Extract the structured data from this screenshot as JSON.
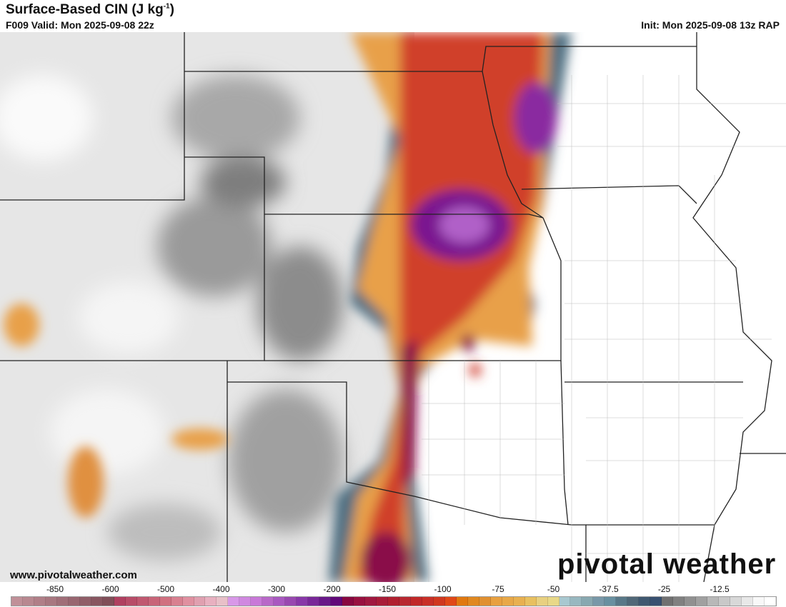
{
  "header": {
    "title": "Surface-Based CIN (J kg",
    "title_sup": "-1",
    "title_end": ")",
    "valid": "F009 Valid: Mon 2025-09-08 22z",
    "init": "Init: Mon 2025-09-08 13z RAP"
  },
  "footer": {
    "url": "www.pivotalweather.com",
    "logo": "pivotal weather"
  },
  "colorbar": {
    "labels": [
      "-850",
      "-600",
      "-500",
      "-400",
      "-300",
      "-200",
      "-150",
      "-100",
      "-75",
      "-50",
      "-37.5",
      "-25",
      "-12.5"
    ],
    "colors": [
      "#c09098",
      "#b88890",
      "#b07f88",
      "#a87780",
      "#a06e78",
      "#986670",
      "#905e68",
      "#885660",
      "#804e58",
      "#b04060",
      "#b84c68",
      "#c05870",
      "#c86478",
      "#d07080",
      "#d88090",
      "#e090a0",
      "#e0a0b0",
      "#e8b0c0",
      "#e8c0c8",
      "#d898e8",
      "#d088e0",
      "#c878d8",
      "#b868c8",
      "#a858c0",
      "#9848b0",
      "#8838a8",
      "#782898",
      "#681888",
      "#600878",
      "#880840",
      "#981040",
      "#a01840",
      "#a81c38",
      "#b02030",
      "#b82830",
      "#c02828",
      "#c83028",
      "#d03820",
      "#e04818",
      "#e07810",
      "#e08820",
      "#e09030",
      "#e8a040",
      "#e8a848",
      "#e8b050",
      "#e8c060",
      "#e8d080",
      "#e8d888",
      "#a8c8d0",
      "#98b8c0",
      "#88a8b0",
      "#7898a8",
      "#6890a0",
      "#587888",
      "#506878",
      "#405870",
      "#385070",
      "#707070",
      "#808080",
      "#909090",
      "#a0a0a0",
      "#b8b8b8",
      "#c8c8c8",
      "#d8d8d8",
      "#e8e8e8",
      "#f8f8f8",
      "#ffffff"
    ]
  }
}
